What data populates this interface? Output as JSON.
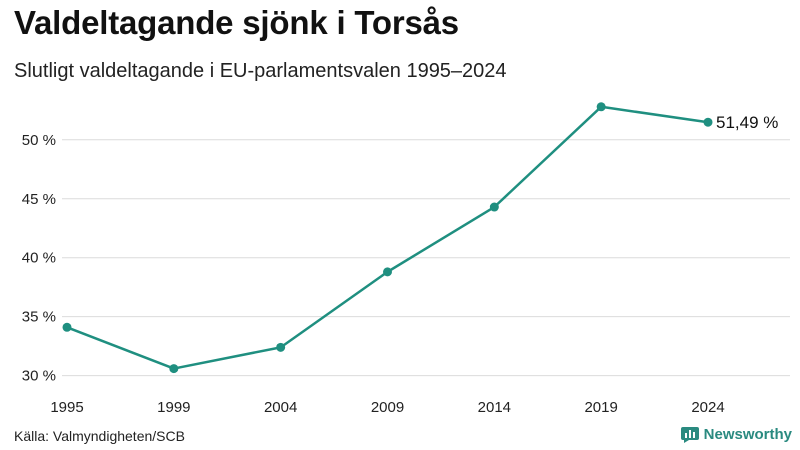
{
  "header": {
    "title": "Valdeltagande sjönk i Torsås",
    "subtitle": "Slutligt valdeltagande i EU-parlamentsvalen 1995–2024"
  },
  "footer": {
    "source": "Källa: Valmyndigheten/SCB",
    "brand": "Newsworthy",
    "brand_icon": "newsworthy-logo-icon"
  },
  "chart_data": {
    "type": "line",
    "title": "Valdeltagande sjönk i Torsås",
    "subtitle": "Slutligt valdeltagande i EU-parlamentsvalen 1995–2024",
    "xlabel": "",
    "ylabel": "",
    "categories": [
      "1995",
      "1999",
      "2004",
      "2009",
      "2014",
      "2019",
      "2024"
    ],
    "series": [
      {
        "values": [
          34.1,
          30.6,
          32.4,
          38.8,
          44.3,
          52.8,
          51.49
        ],
        "color": "#1f8f80"
      }
    ],
    "y_ticks": [
      30,
      35,
      40,
      45,
      50
    ],
    "y_tick_labels": [
      "30 %",
      "35 %",
      "40 %",
      "45 %",
      "50 %"
    ],
    "ylim": [
      29.8,
      53.8
    ],
    "grid": true,
    "end_label": "51,49 %",
    "colors": {
      "line": "#1f8f80",
      "grid": "#dcdcdc",
      "brand": "#2a8a80"
    }
  }
}
